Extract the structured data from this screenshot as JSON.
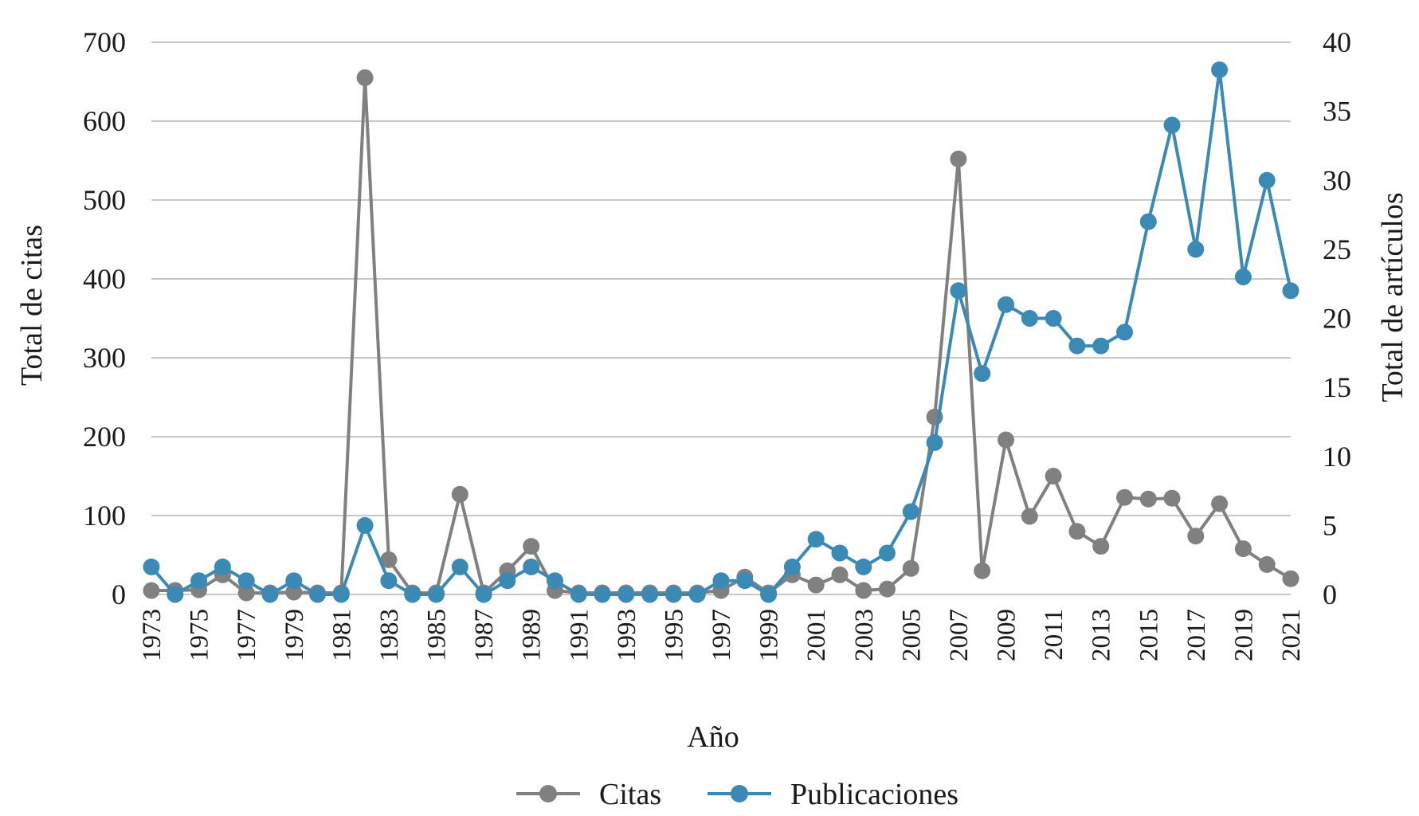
{
  "chart_data": {
    "type": "line",
    "title": "",
    "xlabel": "Año",
    "ylabel_left": "Total de citas",
    "ylabel_right": "Total de artículos",
    "x": [
      1973,
      1974,
      1975,
      1976,
      1977,
      1978,
      1979,
      1980,
      1981,
      1982,
      1983,
      1984,
      1985,
      1986,
      1987,
      1988,
      1989,
      1990,
      1991,
      1992,
      1993,
      1994,
      1995,
      1996,
      1997,
      1998,
      1999,
      2000,
      2001,
      2002,
      2003,
      2004,
      2005,
      2006,
      2007,
      2008,
      2009,
      2010,
      2011,
      2012,
      2013,
      2014,
      2015,
      2016,
      2017,
      2018,
      2019,
      2020,
      2021
    ],
    "x_tick_labels": [
      "1973",
      "1975",
      "1977",
      "1979",
      "1981",
      "1983",
      "1985",
      "1987",
      "1989",
      "1991",
      "1993",
      "1995",
      "1997",
      "1999",
      "2001",
      "2003",
      "2005",
      "2007",
      "2009",
      "2011",
      "2013",
      "2015",
      "2017",
      "2019",
      "2021"
    ],
    "ylim_left": [
      0,
      700
    ],
    "yticks_left": [
      "0",
      "100",
      "200",
      "300",
      "400",
      "500",
      "600",
      "700"
    ],
    "ylim_right": [
      0,
      40
    ],
    "yticks_right": [
      "0",
      "5",
      "10",
      "15",
      "20",
      "25",
      "30",
      "35",
      "40"
    ],
    "grid": true,
    "legend_position": "bottom",
    "series": [
      {
        "name": "Citas",
        "axis": "left",
        "color": "#808080",
        "values": [
          5,
          5,
          6,
          25,
          2,
          2,
          3,
          2,
          2,
          655,
          44,
          2,
          2,
          127,
          2,
          30,
          61,
          5,
          2,
          2,
          2,
          2,
          2,
          2,
          5,
          22,
          2,
          25,
          12,
          25,
          5,
          7,
          33,
          225,
          552,
          30,
          196,
          99,
          150,
          80,
          61,
          123,
          121,
          122,
          74,
          115,
          58,
          38,
          20
        ]
      },
      {
        "name": "Publicaciones",
        "axis": "right",
        "color": "#3a8ab5",
        "values": [
          2,
          0,
          1,
          2,
          1,
          0,
          1,
          0,
          0,
          5,
          1,
          0,
          0,
          2,
          0,
          1,
          2,
          1,
          0,
          0,
          0,
          0,
          0,
          0,
          1,
          1,
          0,
          2,
          4,
          3,
          2,
          3,
          6,
          11,
          22,
          16,
          21,
          20,
          20,
          18,
          18,
          19,
          27,
          34,
          25,
          38,
          23,
          30,
          22
        ]
      }
    ]
  }
}
